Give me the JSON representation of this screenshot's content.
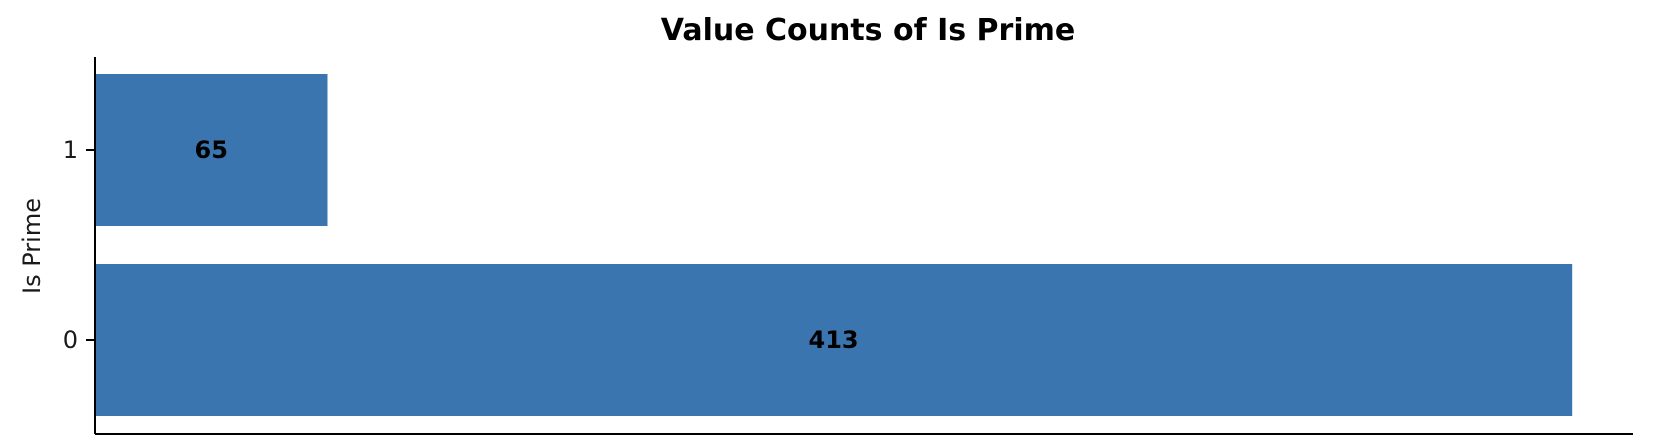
{
  "chart_data": {
    "type": "bar",
    "orientation": "horizontal",
    "title": "Value Counts of Is Prime",
    "xlabel": "",
    "ylabel": "Is Prime",
    "categories": [
      "0",
      "1"
    ],
    "values": [
      413,
      65
    ],
    "data_labels": [
      "413",
      "65"
    ],
    "xlim": [
      0,
      430
    ],
    "bar_color": "#3b75af",
    "grid": false,
    "legend": "none"
  }
}
